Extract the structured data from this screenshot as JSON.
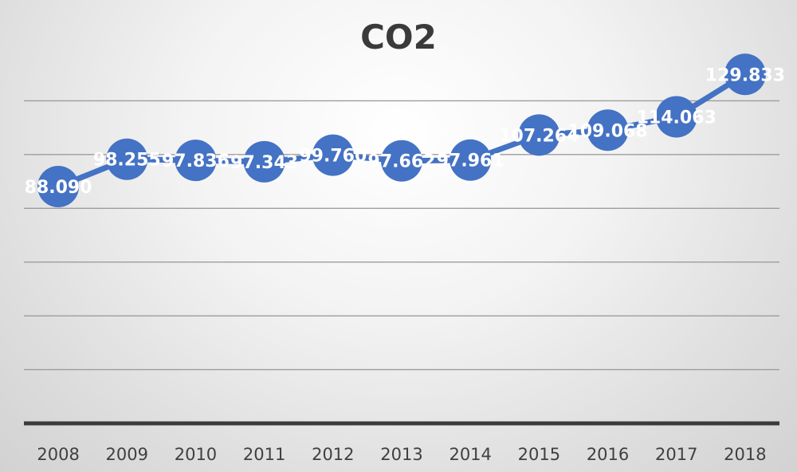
{
  "chart_data": {
    "type": "line",
    "title": "CO2",
    "categories": [
      "2008",
      "2009",
      "2010",
      "2011",
      "2012",
      "2013",
      "2014",
      "2015",
      "2016",
      "2017",
      "2018"
    ],
    "values": [
      88.09,
      98.255,
      97.836,
      97.343,
      99.76,
      97.662,
      97.961,
      107.264,
      109.068,
      114.063,
      129.833
    ],
    "value_labels": [
      "88.090",
      "98.255",
      "97.836",
      "97.343",
      "99.760",
      "97.662",
      "97.961",
      "107.264",
      "109.068",
      "114.063",
      "129.833"
    ],
    "ylim": [
      0,
      140
    ],
    "ytick_step": 20,
    "grid": true,
    "show_y_tick_labels": false,
    "colors": {
      "series": "#4472c4",
      "label": "#ffffff",
      "grid": "#9d9d9d",
      "axis": "#3b3b3b",
      "text": "#404040"
    }
  }
}
